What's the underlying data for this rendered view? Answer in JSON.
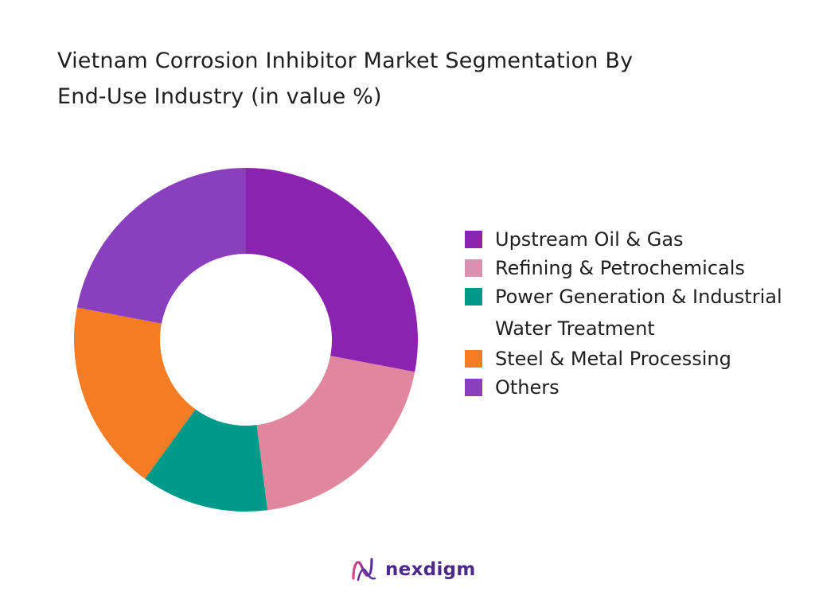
{
  "chart_data": {
    "type": "pie",
    "variant": "donut",
    "title_lines": [
      "Vietnam Corrosion Inhibitor Market Segmentation By",
      "End-Use Industry (in value %)"
    ],
    "categories": [
      "Upstream Oil & Gas",
      "Refining & Petrochemicals",
      "Power Generation & Industrial Water Treatment",
      "Steel & Metal Processing",
      "Others"
    ],
    "values": [
      28,
      20,
      12,
      18,
      22
    ],
    "slice_colors": [
      "#8b22b0",
      "#e0879e",
      "#009a8a",
      "#f47c24",
      "#8a3fbe"
    ],
    "legend_colors": [
      "#8b22b0",
      "#d892b0",
      "#009a8a",
      "#f47c24",
      "#8a3fbe"
    ],
    "legend_placement": "right"
  },
  "brand": {
    "name": "nexdigm",
    "icon": "nexdigm-logo-icon",
    "color": "#4a2a8a"
  }
}
